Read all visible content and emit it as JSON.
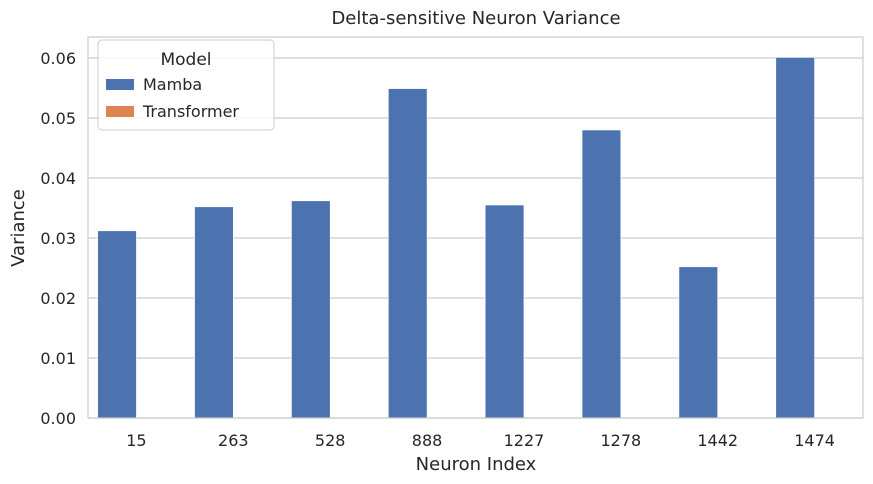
{
  "chart_data": {
    "type": "bar",
    "title": "Delta-sensitive Neuron Variance",
    "xlabel": "Neuron Index",
    "ylabel": "Variance",
    "categories": [
      "15",
      "263",
      "528",
      "888",
      "1227",
      "1278",
      "1442",
      "1474"
    ],
    "series": [
      {
        "name": "Mamba",
        "color": "#4c72b0",
        "values": [
          0.0312,
          0.0352,
          0.0362,
          0.0549,
          0.0355,
          0.048,
          0.0252,
          0.0601
        ]
      },
      {
        "name": "Transformer",
        "color": "#dd8452",
        "values": [
          0,
          0,
          0,
          0,
          0,
          0,
          0,
          0
        ]
      }
    ],
    "ylim": [
      0,
      0.0635
    ],
    "yticks": [
      "0.00",
      "0.01",
      "0.02",
      "0.03",
      "0.04",
      "0.05",
      "0.06"
    ],
    "ytick_values": [
      0,
      0.01,
      0.02,
      0.03,
      0.04,
      0.05,
      0.06
    ],
    "grid": "horizontal",
    "legend": {
      "title": "Model",
      "placement": "top-left"
    }
  }
}
